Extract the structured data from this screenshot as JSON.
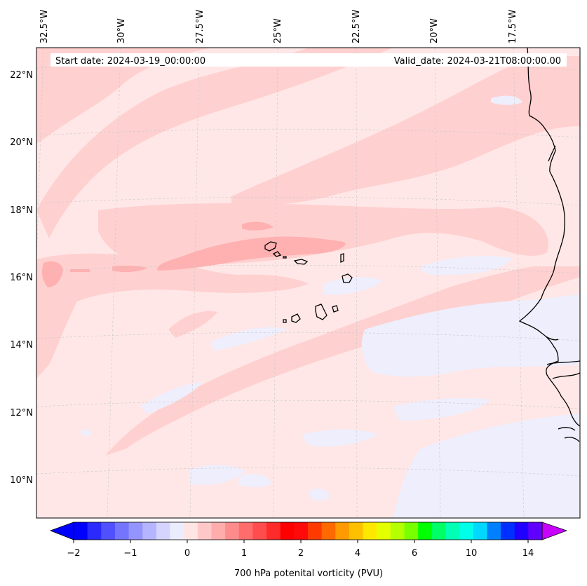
{
  "header": {
    "start_date": "Start date: 2024-03-19_00:00:00",
    "valid_date": "Valid_date: 2024-03-21T08:00:00.00"
  },
  "map": {
    "longitude_labels": [
      "32.5°W",
      "30°W",
      "27.5°W",
      "25°W",
      "22.5°W",
      "20°W",
      "17.5°W"
    ],
    "latitude_labels": [
      "22°N",
      "20°N",
      "18°N",
      "16°N",
      "14°N",
      "12°N",
      "10°N"
    ],
    "colors": {
      "background_field": "#ffe7e7",
      "light_band": "#ffd0d0",
      "mid_band": "#ffb0b0",
      "negative_patch": "#eeeefc",
      "coastline": "#000000",
      "gridline": "#c8c8c8"
    }
  },
  "colorbar": {
    "label": "700 hPa potenital vorticity (PVU)",
    "tick_labels": [
      "−2",
      "−1",
      "0",
      "1",
      "2",
      "4",
      "6",
      "10",
      "14"
    ],
    "colors": [
      "#0000ff",
      "#2a2aff",
      "#5050ff",
      "#7474ff",
      "#9494ff",
      "#b4b4ff",
      "#d4d4ff",
      "#ececff",
      "#ffe4e4",
      "#ffc8c8",
      "#ffacac",
      "#ff8c8c",
      "#ff6c6c",
      "#ff4c4c",
      "#ff2a2a",
      "#ff0000",
      "#ff0a0a",
      "#ff3a00",
      "#ff6a00",
      "#ff9a00",
      "#ffc000",
      "#ffe800",
      "#e4ff00",
      "#b4ff00",
      "#78ff00",
      "#00ff00",
      "#00ff64",
      "#00ffb4",
      "#00ffe8",
      "#00d8ff",
      "#0080ff",
      "#0030ff",
      "#2000ff",
      "#6000ff"
    ],
    "under_color": "#0000ff",
    "over_color": "#c800ff"
  }
}
